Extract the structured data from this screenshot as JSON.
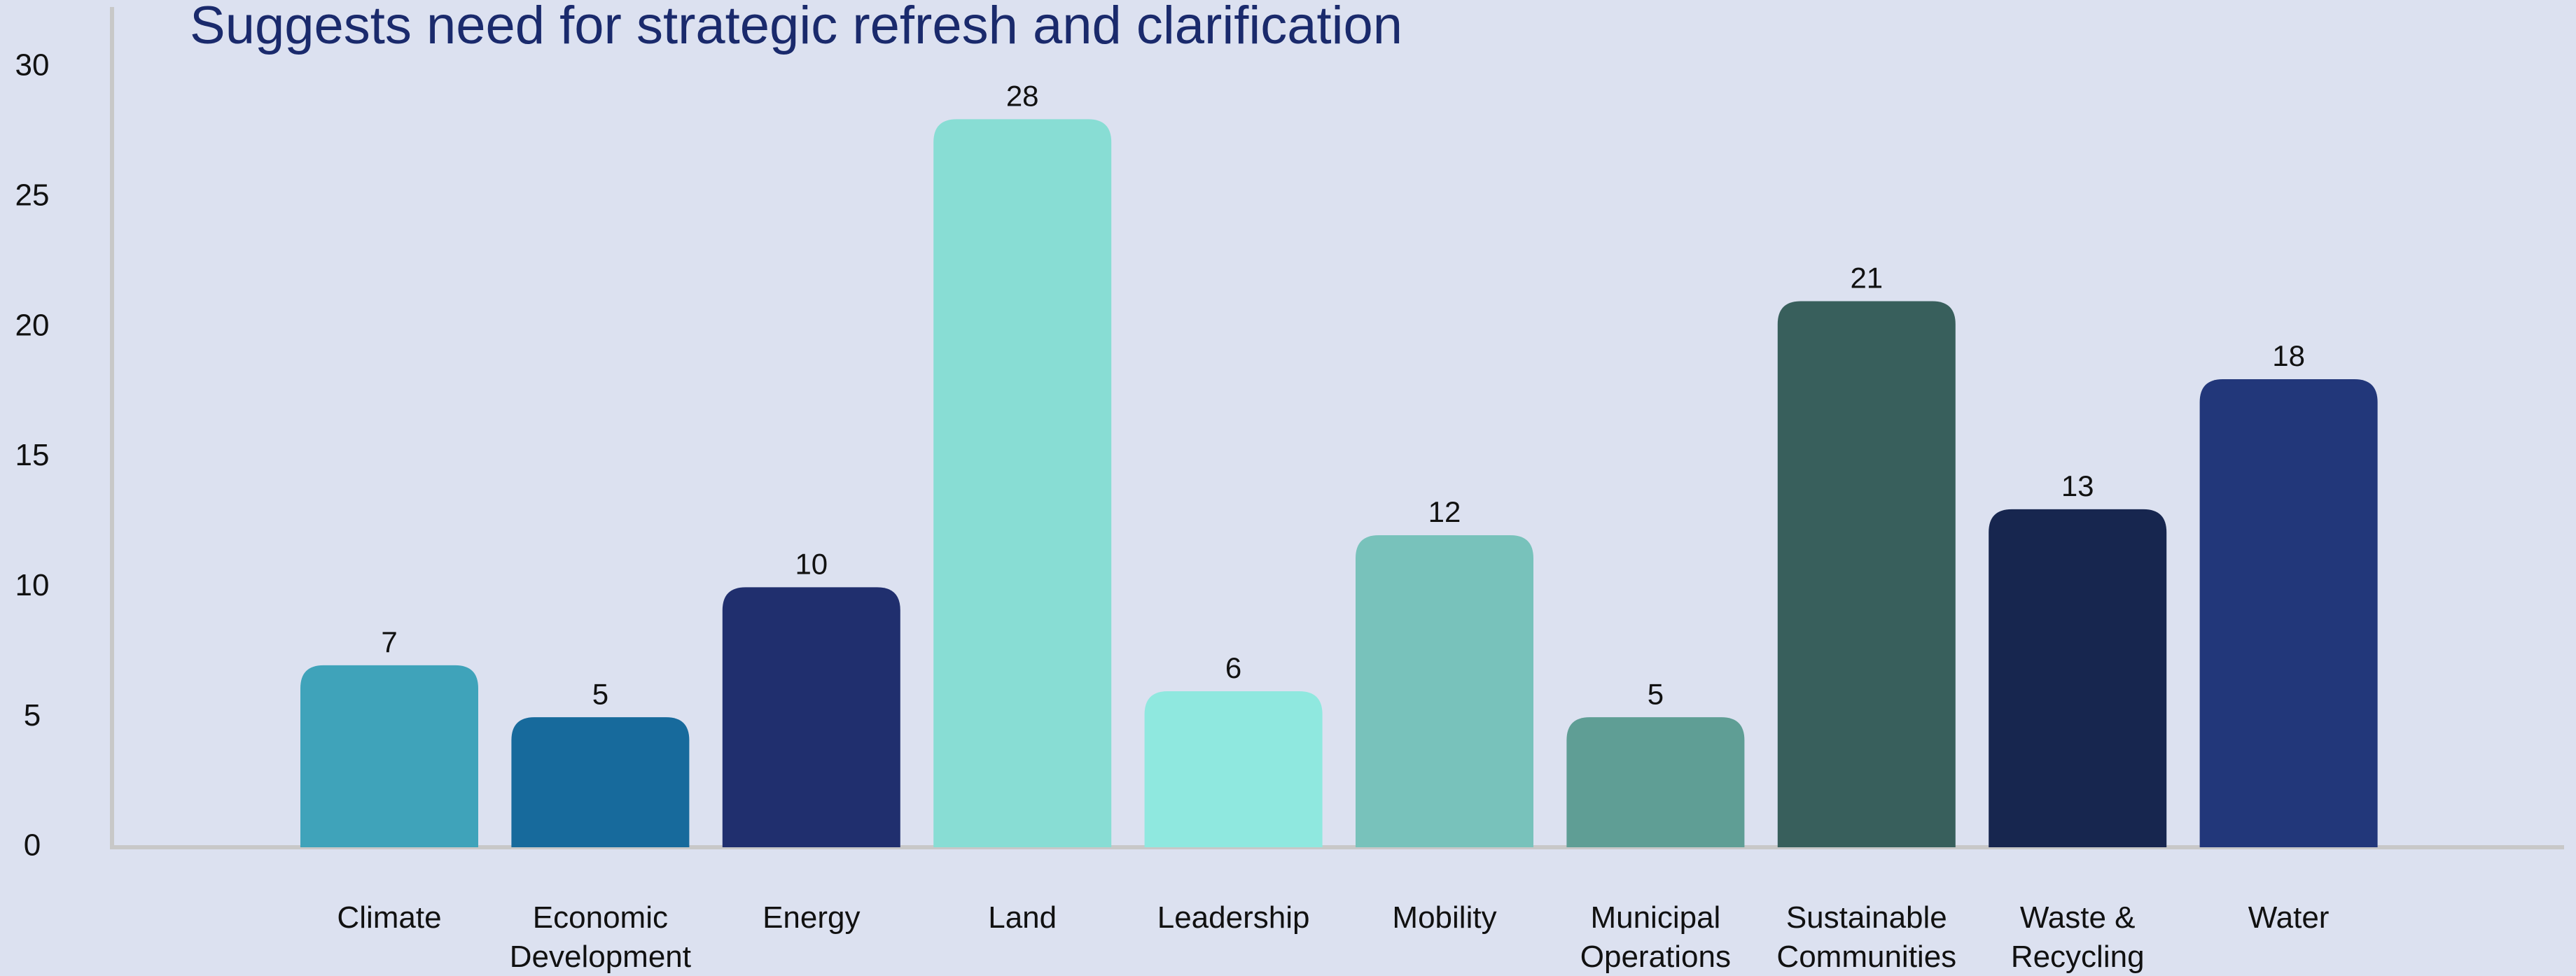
{
  "chart_data": {
    "type": "bar",
    "title": "Suggests need for strategic refresh and clarification",
    "categories": [
      "Climate",
      "Economic Development",
      "Energy",
      "Land",
      "Leadership",
      "Mobility",
      "Municipal Operations",
      "Sustainable Communities",
      "Waste & Recycling",
      "Water"
    ],
    "values": [
      7,
      5,
      10,
      28,
      6,
      12,
      5,
      21,
      13,
      18
    ],
    "colors": [
      "#3fa3ba",
      "#176a9c",
      "#202f6e",
      "#88ddd4",
      "#8fe8df",
      "#78c2bb",
      "#5f9e95",
      "#385f5c",
      "#17264f",
      "#22377a"
    ],
    "ylim": [
      0,
      30
    ],
    "yticks": [
      0,
      5,
      10,
      15,
      20,
      25,
      30
    ],
    "grid": false
  }
}
